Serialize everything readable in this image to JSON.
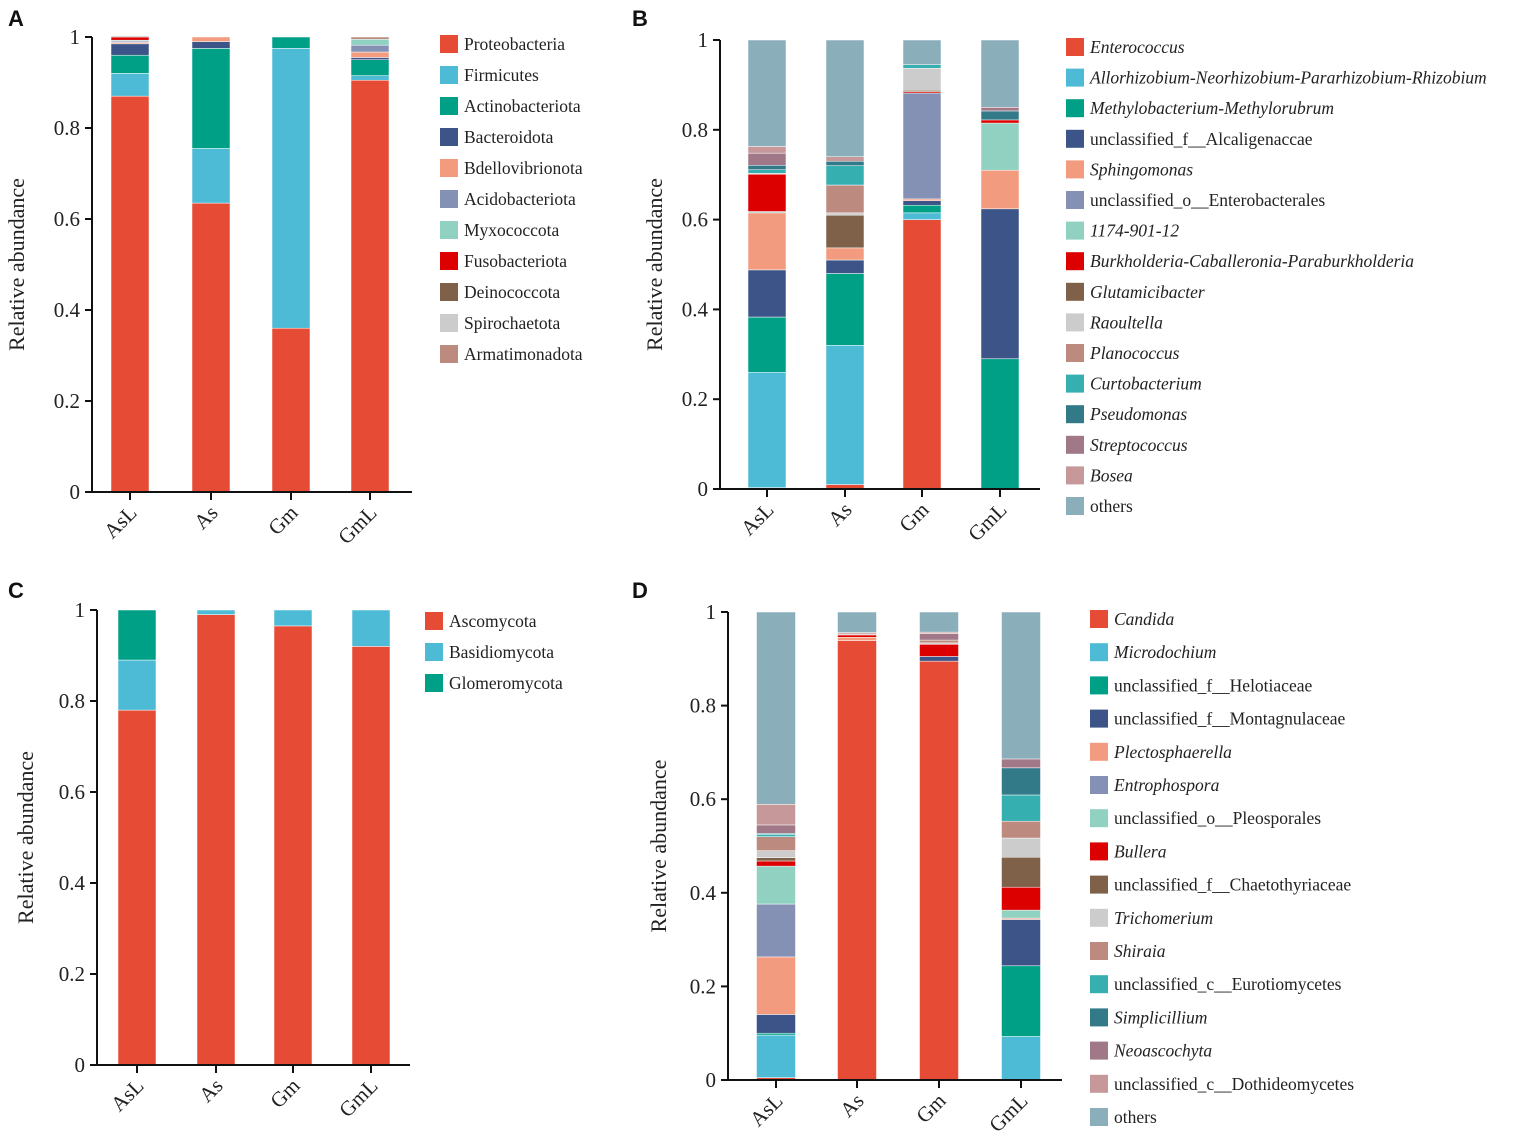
{
  "chart_data": [
    {
      "panel": "A",
      "type": "bar",
      "stacked": true,
      "ylabel": "Relative abundance",
      "ylim": [
        0,
        1
      ],
      "yticks": [
        "0",
        "0.2",
        "0.4",
        "0.6",
        "0.8",
        "1"
      ],
      "categories": [
        "AsL",
        "As",
        "Gm",
        "GmL"
      ],
      "series": [
        {
          "name": "Proteobacteria",
          "color": "#E64B35",
          "italic": false,
          "values": [
            0.87,
            0.635,
            0.36,
            0.905
          ]
        },
        {
          "name": "Firmicutes",
          "color": "#4DBBD5",
          "italic": false,
          "values": [
            0.05,
            0.12,
            0.615,
            0.01
          ]
        },
        {
          "name": "Actinobacteriota",
          "color": "#00A087",
          "italic": false,
          "values": [
            0.04,
            0.22,
            0.025,
            0.035
          ]
        },
        {
          "name": "Bacteroidota",
          "color": "#3C5488",
          "italic": false,
          "values": [
            0.025,
            0.015,
            0,
            0.005
          ]
        },
        {
          "name": "Bdellovibrionota",
          "color": "#F39B7F",
          "italic": false,
          "values": [
            0.003,
            0.01,
            0,
            0.012
          ]
        },
        {
          "name": "Acidobacteriota",
          "color": "#8491B4",
          "italic": false,
          "values": [
            0.003,
            0,
            0,
            0.015
          ]
        },
        {
          "name": "Myxococcota",
          "color": "#91D1C2",
          "italic": false,
          "values": [
            0.002,
            0,
            0,
            0.013
          ]
        },
        {
          "name": "Fusobacteriota",
          "color": "#DC0000",
          "italic": false,
          "values": [
            0.007,
            0,
            0,
            0
          ]
        },
        {
          "name": "Deinococcota",
          "color": "#7E6148",
          "italic": false,
          "values": [
            0,
            0,
            0,
            0
          ]
        },
        {
          "name": "Spirochaetota",
          "color": "#CCCCCC",
          "italic": false,
          "values": [
            0.003,
            0,
            0,
            0
          ]
        },
        {
          "name": "Armatimonadota",
          "color": "#BC8A7E",
          "italic": false,
          "values": [
            0,
            0,
            0,
            0.005
          ]
        }
      ]
    },
    {
      "panel": "B",
      "type": "bar",
      "stacked": true,
      "ylabel": "Relative abundance",
      "ylim": [
        0,
        1
      ],
      "yticks": [
        "0",
        "0.2",
        "0.4",
        "0.6",
        "0.8",
        "1"
      ],
      "categories": [
        "AsL",
        "As",
        "Gm",
        "GmL"
      ],
      "series": [
        {
          "name": "Enterococcus",
          "color": "#E64B35",
          "italic": true,
          "values": [
            0.003,
            0.01,
            0.6,
            0
          ]
        },
        {
          "name": "Allorhizobium-Neorhizobium-Pararhizobium-Rhizobium",
          "color": "#4DBBD5",
          "italic": true,
          "values": [
            0.257,
            0.31,
            0.015,
            0
          ]
        },
        {
          "name": "Methylobacterium-Methylorubrum",
          "color": "#00A087",
          "italic": true,
          "values": [
            0.123,
            0.16,
            0.017,
            0.29
          ]
        },
        {
          "name": "unclassified_f__Alcaligenaccae",
          "color": "#3C5488",
          "italic": false,
          "values": [
            0.105,
            0.03,
            0.01,
            0.334
          ]
        },
        {
          "name": "Sphingomonas",
          "color": "#F39B7F",
          "italic": true,
          "values": [
            0.127,
            0.027,
            0.004,
            0.086
          ]
        },
        {
          "name": "unclassified_o__Enterobacterales",
          "color": "#8491B4",
          "italic": false,
          "values": [
            0,
            0,
            0.236,
            0
          ]
        },
        {
          "name": "1174-901-12",
          "color": "#91D1C2",
          "italic": true,
          "values": [
            0.003,
            0,
            0,
            0.105
          ]
        },
        {
          "name": "Burkholderia-Caballeronia-Paraburkholderia",
          "color": "#DC0000",
          "italic": true,
          "values": [
            0.083,
            0,
            0.003,
            0.007
          ]
        },
        {
          "name": "Glutamicibacter",
          "color": "#7E6148",
          "italic": true,
          "values": [
            0,
            0.073,
            0.003,
            0
          ]
        },
        {
          "name": "Raoultella",
          "color": "#CCCCCC",
          "italic": true,
          "values": [
            0.002,
            0.005,
            0.049,
            0
          ]
        },
        {
          "name": "Planococcus",
          "color": "#BC8A7E",
          "italic": true,
          "values": [
            0,
            0.062,
            0,
            0
          ]
        },
        {
          "name": "Curtobacterium",
          "color": "#35AFB0",
          "italic": true,
          "values": [
            0.008,
            0.043,
            0.008,
            0
          ]
        },
        {
          "name": "Pseudomonas",
          "color": "#327A87",
          "italic": true,
          "values": [
            0.01,
            0.01,
            0,
            0.02
          ]
        },
        {
          "name": "Streptococcus",
          "color": "#A07888",
          "italic": true,
          "values": [
            0.027,
            0,
            0,
            0.008
          ]
        },
        {
          "name": "Bosea",
          "color": "#C6989A",
          "italic": true,
          "values": [
            0.015,
            0.01,
            0,
            0
          ]
        },
        {
          "name": "others",
          "color": "#8AAFBB",
          "italic": false,
          "values": [
            0.237,
            0.26,
            0.055,
            0.15
          ]
        }
      ]
    },
    {
      "panel": "C",
      "type": "bar",
      "stacked": true,
      "ylabel": "Relative abundance",
      "ylim": [
        0,
        1
      ],
      "yticks": [
        "0",
        "0.2",
        "0.4",
        "0.6",
        "0.8",
        "1"
      ],
      "categories": [
        "AsL",
        "As",
        "Gm",
        "GmL"
      ],
      "series": [
        {
          "name": "Ascomycota",
          "color": "#E64B35",
          "italic": false,
          "values": [
            0.78,
            0.99,
            0.965,
            0.92
          ]
        },
        {
          "name": "Basidiomycota",
          "color": "#4DBBD5",
          "italic": false,
          "values": [
            0.11,
            0.01,
            0.035,
            0.08
          ]
        },
        {
          "name": "Glomeromycota",
          "color": "#00A087",
          "italic": false,
          "values": [
            0.11,
            0,
            0,
            0
          ]
        }
      ]
    },
    {
      "panel": "D",
      "type": "bar",
      "stacked": true,
      "ylabel": "Relative abundance",
      "ylim": [
        0,
        1
      ],
      "yticks": [
        "0",
        "0.2",
        "0.4",
        "0.6",
        "0.8",
        "1"
      ],
      "categories": [
        "AsL",
        "As",
        "Gm",
        "GmL"
      ],
      "series": [
        {
          "name": "Candida",
          "color": "#E64B35",
          "italic": true,
          "values": [
            0.005,
            0.939,
            0.895,
            0
          ]
        },
        {
          "name": "Microdochium",
          "color": "#4DBBD5",
          "italic": true,
          "values": [
            0.091,
            0,
            0,
            0.093
          ]
        },
        {
          "name": "unclassified_f__Helotiaceae",
          "color": "#00A087",
          "italic": false,
          "values": [
            0.004,
            0,
            0,
            0.151
          ]
        },
        {
          "name": "unclassified_f__Montagnulaceae",
          "color": "#3C5488",
          "italic": false,
          "values": [
            0.04,
            0,
            0.01,
            0.099
          ]
        },
        {
          "name": "Plectosphaerella",
          "color": "#F39B7F",
          "italic": true,
          "values": [
            0.123,
            0.007,
            0,
            0.003
          ]
        },
        {
          "name": "Entrophospora",
          "color": "#8491B4",
          "italic": true,
          "values": [
            0.113,
            0,
            0,
            0
          ]
        },
        {
          "name": "unclassified_o__Pleosporales",
          "color": "#91D1C2",
          "italic": false,
          "values": [
            0.081,
            0,
            0,
            0.017
          ]
        },
        {
          "name": "Bullera",
          "color": "#DC0000",
          "italic": true,
          "values": [
            0.011,
            0.005,
            0.026,
            0.049
          ]
        },
        {
          "name": "unclassified_f__Chaetothyriaceae",
          "color": "#7E6148",
          "italic": false,
          "values": [
            0.007,
            0,
            0,
            0.064
          ]
        },
        {
          "name": "Trichomerium",
          "color": "#CCCCCC",
          "italic": true,
          "values": [
            0.015,
            0,
            0.003,
            0.041
          ]
        },
        {
          "name": "Shiraia",
          "color": "#BC8A7E",
          "italic": true,
          "values": [
            0.03,
            0.002,
            0.006,
            0.036
          ]
        },
        {
          "name": "unclassified_c__Eurotiomycetes",
          "color": "#35AFB0",
          "italic": false,
          "values": [
            0.005,
            0,
            0,
            0.056
          ]
        },
        {
          "name": "Simplicillium",
          "color": "#327A87",
          "italic": true,
          "values": [
            0.002,
            0,
            0,
            0.058
          ]
        },
        {
          "name": "Neoascochyta",
          "color": "#A07888",
          "italic": true,
          "values": [
            0.018,
            0,
            0.014,
            0.019
          ]
        },
        {
          "name": "unclassified_c__Dothideomycetes",
          "color": "#C6989A",
          "italic": false,
          "values": [
            0.044,
            0.003,
            0.003,
            0
          ]
        },
        {
          "name": "others",
          "color": "#8AAFBB",
          "italic": false,
          "values": [
            0.411,
            0.044,
            0.043,
            0.314
          ]
        }
      ]
    }
  ]
}
